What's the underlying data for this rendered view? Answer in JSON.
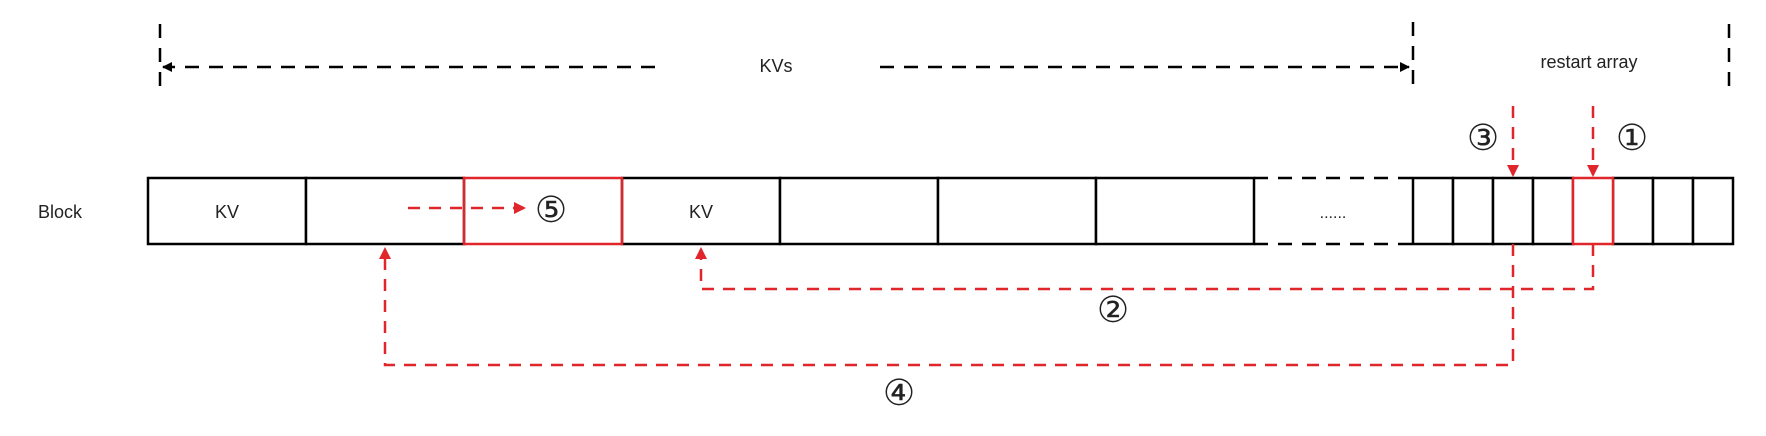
{
  "diagram": {
    "block_label": "Block",
    "kvs_label": "KVs",
    "restart_label": "restart array",
    "cells": [
      {
        "label": "KV",
        "highlight": false
      },
      {
        "label": "",
        "highlight": false
      },
      {
        "label": "",
        "highlight": true
      },
      {
        "label": "KV",
        "highlight": false
      },
      {
        "label": "",
        "highlight": false
      },
      {
        "label": "",
        "highlight": false
      },
      {
        "label": "",
        "highlight": false
      }
    ],
    "ellipsis": "......",
    "restart_cells": [
      {
        "highlight": false
      },
      {
        "highlight": false
      },
      {
        "highlight": false
      },
      {
        "highlight": false
      },
      {
        "highlight": true
      },
      {
        "highlight": false
      },
      {
        "highlight": false
      },
      {
        "highlight": false
      }
    ],
    "steps": [
      "①",
      "②",
      "③",
      "④",
      "⑤"
    ],
    "colors": {
      "outline": "#000000",
      "accent": "#e0262a",
      "text": "#222222"
    }
  }
}
